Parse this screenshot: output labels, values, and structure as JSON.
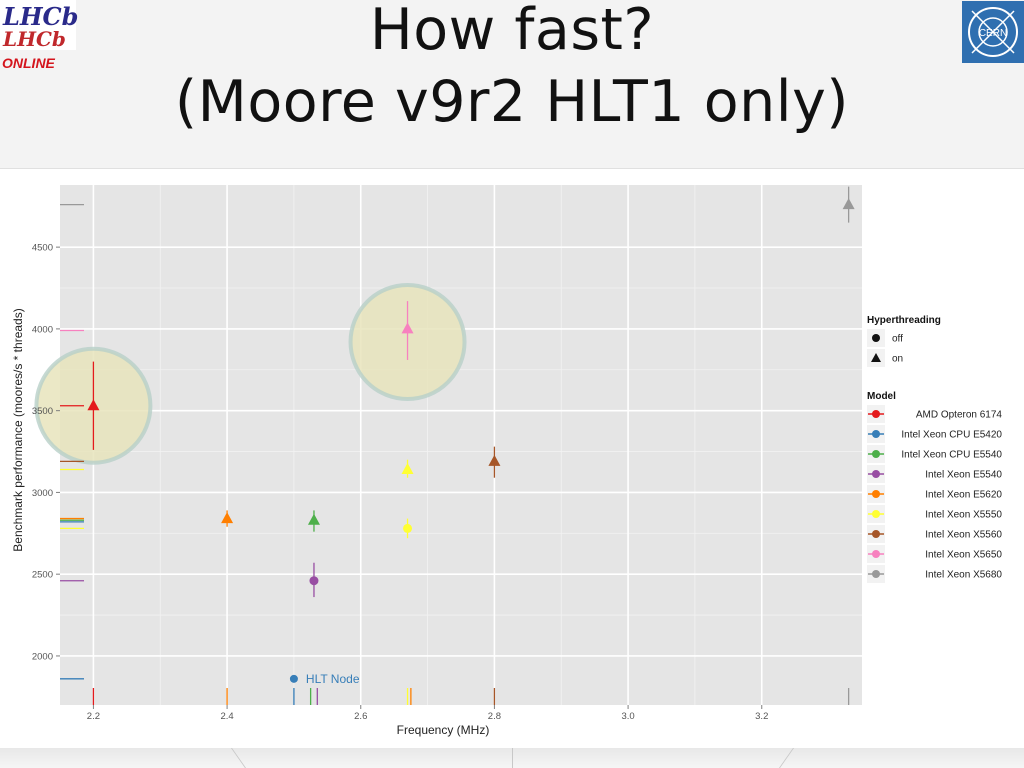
{
  "slide": {
    "title_line1": "How fast?",
    "title_line2": "(Moore v9r2 HLT1 only)",
    "logo_left": {
      "line1": "LHCb",
      "line2": "ONLINE"
    },
    "logo_right": "CERN"
  },
  "chart_data": {
    "type": "scatter",
    "xlabel": "Frequency (MHz)",
    "ylabel": "Benchmark performance (moores/s * threads)",
    "xlim": [
      2.15,
      3.35
    ],
    "ylim": [
      1700,
      4880
    ],
    "x_ticks": [
      "2.2",
      "2.4",
      "2.6",
      "2.8",
      "3.0",
      "3.2"
    ],
    "y_ticks": [
      "2000",
      "2500",
      "3000",
      "3500",
      "4000",
      "4500"
    ],
    "grid": true,
    "legend_position": "right",
    "legend_shape_title": "Hyperthreading",
    "legend_shapes": [
      {
        "label": "off",
        "shape": "circle"
      },
      {
        "label": "on",
        "shape": "triangle"
      }
    ],
    "legend_model_title": "Model",
    "annotation": {
      "text": "HLT Node",
      "x": 2.5,
      "y": 1860,
      "color": "#377eb8"
    },
    "series": [
      {
        "name": "AMD Opteron 6174",
        "color": "#e41a1c",
        "points": [
          {
            "x": 2.2,
            "y": 3530,
            "err_low": 3260,
            "err_high": 3800,
            "ht": "on"
          }
        ]
      },
      {
        "name": "Intel Xeon CPU E5420",
        "color": "#377eb8",
        "points": []
      },
      {
        "name": "Intel Xeon CPU E5540",
        "color": "#4daf4a",
        "points": [
          {
            "x": 2.53,
            "y": 2830,
            "err_low": 2760,
            "err_high": 2890,
            "ht": "on"
          }
        ]
      },
      {
        "name": "Intel Xeon E5540",
        "color": "#984ea3",
        "points": [
          {
            "x": 2.53,
            "y": 2460,
            "err_low": 2360,
            "err_high": 2570,
            "ht": "off"
          }
        ]
      },
      {
        "name": "Intel Xeon E5620",
        "color": "#ff7f00",
        "points": [
          {
            "x": 2.4,
            "y": 2840,
            "err_low": 2790,
            "err_high": 2890,
            "ht": "on"
          }
        ]
      },
      {
        "name": "Intel Xeon X5550",
        "color": "#ffff33",
        "points": [
          {
            "x": 2.67,
            "y": 3140,
            "err_low": 3090,
            "err_high": 3200,
            "ht": "on"
          },
          {
            "x": 2.67,
            "y": 2780,
            "err_low": 2720,
            "err_high": 2840,
            "ht": "off"
          }
        ]
      },
      {
        "name": "Intel Xeon X5560",
        "color": "#a65628",
        "points": [
          {
            "x": 2.8,
            "y": 3190,
            "err_low": 3090,
            "err_high": 3280,
            "ht": "on"
          }
        ]
      },
      {
        "name": "Intel Xeon X5650",
        "color": "#f781bf",
        "points": [
          {
            "x": 2.67,
            "y": 4000,
            "err_low": 3810,
            "err_high": 4170,
            "ht": "on"
          }
        ]
      },
      {
        "name": "Intel Xeon X5680",
        "color": "#999999",
        "points": [
          {
            "x": 3.33,
            "y": 4760,
            "err_low": 4650,
            "err_high": 4870,
            "ht": "on"
          }
        ]
      }
    ],
    "highlights": [
      {
        "x": 2.2,
        "y": 3530
      },
      {
        "x": 2.67,
        "y": 3920
      }
    ],
    "rug_y": [
      {
        "y": 4760,
        "color": "#999999"
      },
      {
        "y": 3990,
        "color": "#f781bf"
      },
      {
        "y": 3530,
        "color": "#e41a1c"
      },
      {
        "y": 3190,
        "color": "#a65628"
      },
      {
        "y": 3140,
        "color": "#ffff33"
      },
      {
        "y": 2840,
        "color": "#ff7f00"
      },
      {
        "y": 2830,
        "color": "#4daf4a"
      },
      {
        "y": 2820,
        "color": "#377eb8"
      },
      {
        "y": 2780,
        "color": "#ffff33"
      },
      {
        "y": 2460,
        "color": "#984ea3"
      },
      {
        "y": 1860,
        "color": "#377eb8"
      }
    ],
    "rug_x": [
      {
        "x": 2.2,
        "color": "#e41a1c"
      },
      {
        "x": 2.4,
        "color": "#ff7f00"
      },
      {
        "x": 2.5,
        "color": "#377eb8"
      },
      {
        "x": 2.525,
        "color": "#4daf4a"
      },
      {
        "x": 2.535,
        "color": "#984ea3"
      },
      {
        "x": 2.67,
        "color": "#ffff33"
      },
      {
        "x": 2.675,
        "color": "#ff7f00"
      },
      {
        "x": 2.8,
        "color": "#a65628"
      },
      {
        "x": 3.33,
        "color": "#999999"
      }
    ]
  }
}
